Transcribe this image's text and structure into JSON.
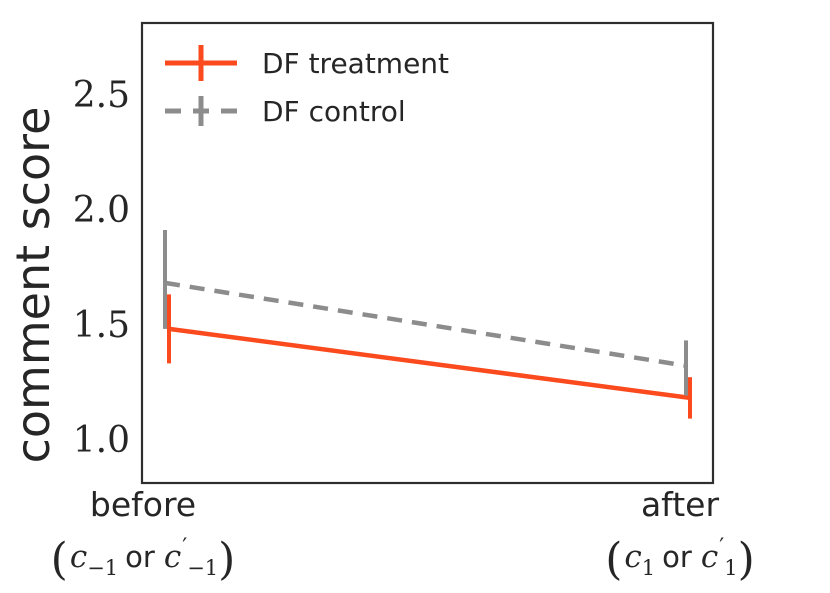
{
  "figure": {
    "background": "#ffffff",
    "text_color": "#262626",
    "spine_color": "#2e2e2e"
  },
  "chart_data": {
    "type": "line",
    "title": "",
    "xlabel": "",
    "ylabel": "comment score",
    "categories": [
      "before (c_-1 or c'_-1)",
      "after (c_1 or c'_1)"
    ],
    "x_tick_labels": [
      {
        "line1": "before",
        "math_parts": [
          {
            "t": "(",
            "k": "paren"
          },
          {
            "t": "c",
            "k": "var"
          },
          {
            "t": "−1",
            "k": "sub"
          },
          {
            "t": "or",
            "k": "word"
          },
          {
            "t": "c",
            "k": "var"
          },
          {
            "t": "′",
            "k": "prime"
          },
          {
            "t": "−1",
            "k": "sub"
          },
          {
            "t": ")",
            "k": "paren"
          }
        ]
      },
      {
        "line1": "after",
        "math_parts": [
          {
            "t": "(",
            "k": "paren"
          },
          {
            "t": "c",
            "k": "var"
          },
          {
            "t": "1",
            "k": "sub"
          },
          {
            "t": "or",
            "k": "word"
          },
          {
            "t": "c",
            "k": "var"
          },
          {
            "t": "′",
            "k": "prime"
          },
          {
            "t": "1",
            "k": "sub"
          },
          {
            "t": ")",
            "k": "paren"
          }
        ]
      }
    ],
    "y_tick_labels": [
      "2.5",
      "2.0",
      "1.5",
      "1.0"
    ],
    "y_tick_values": [
      2.5,
      2.0,
      1.5,
      1.0
    ],
    "ylim": [
      0.82,
      2.82
    ],
    "grid": false,
    "legend": {
      "position": "upper left",
      "frame": false
    },
    "series": [
      {
        "name": "DF treatment",
        "color": "#FB4A1E",
        "line_style": "solid",
        "values": [
          1.49,
          1.19
        ],
        "ci_low": [
          1.34,
          1.1
        ],
        "ci_high": [
          1.64,
          1.28
        ]
      },
      {
        "name": "DF control",
        "color": "#8C8C8C",
        "line_style": "dashed",
        "values": [
          1.69,
          1.33
        ],
        "ci_low": [
          1.49,
          1.2
        ],
        "ci_high": [
          1.92,
          1.44
        ]
      }
    ]
  }
}
